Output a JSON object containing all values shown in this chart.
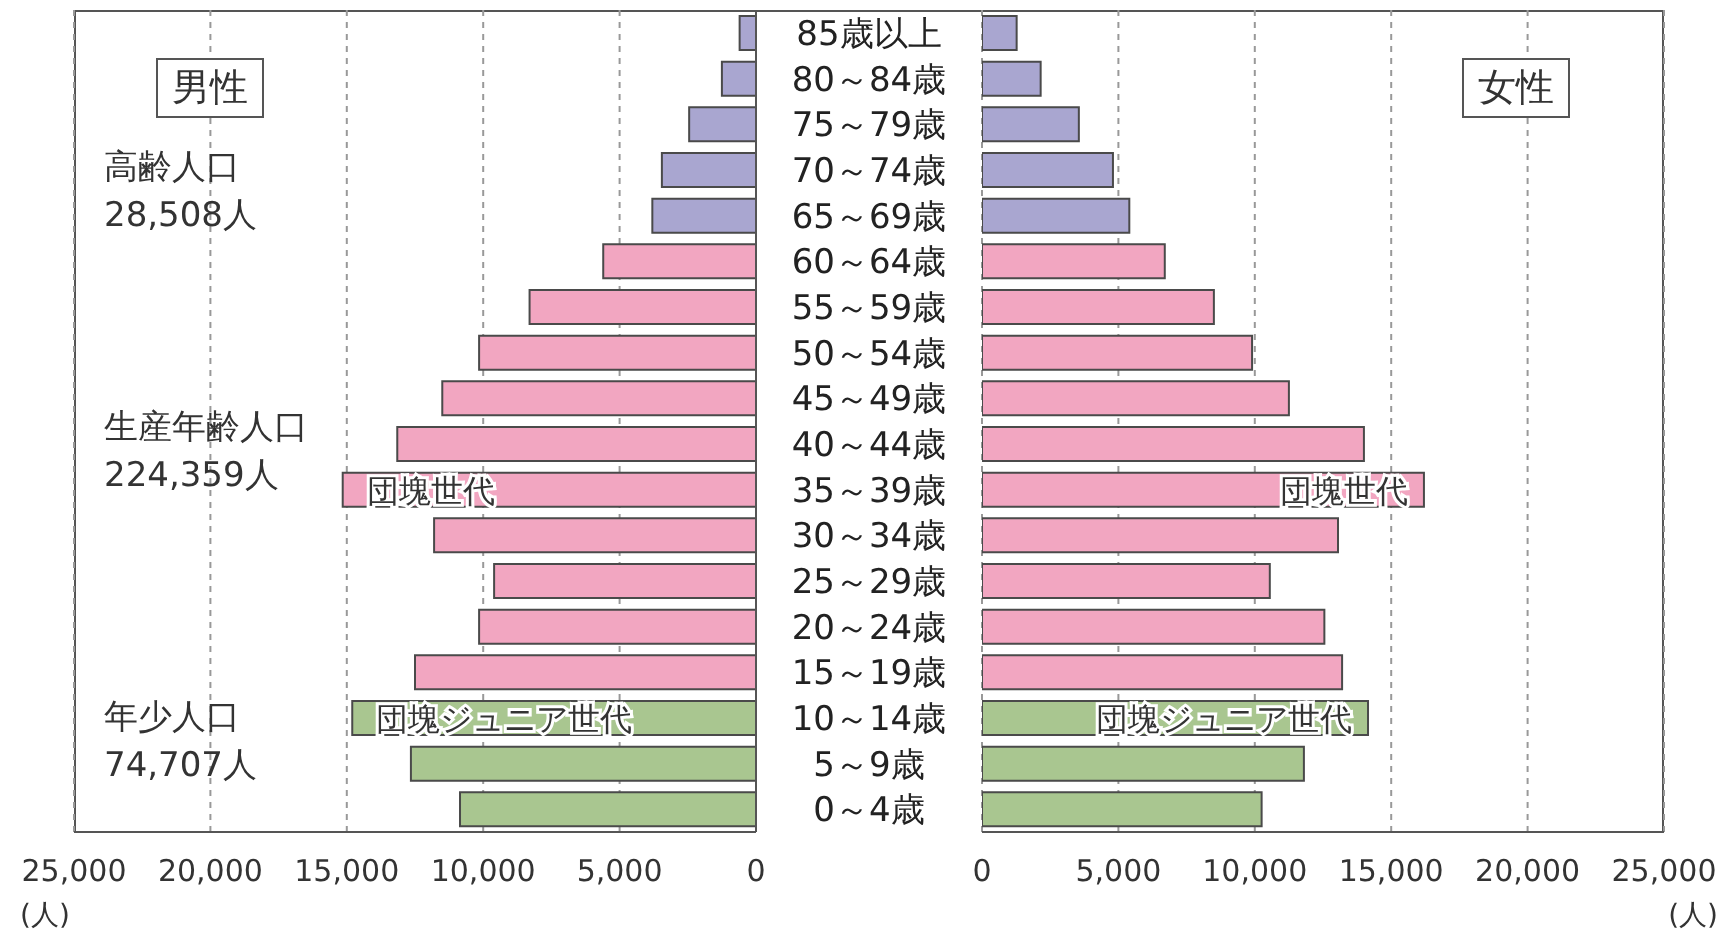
{
  "chart_data": [
    {
      "type": "bar",
      "orientation": "horizontal",
      "grid": "x",
      "xlabel": "(人)",
      "categories": [
        "85歳以上",
        "80～84歳",
        "75～79歳",
        "70～74歳",
        "65～69歳",
        "60～64歳",
        "55～59歳",
        "50～54歳",
        "45～49歳",
        "40～44歳",
        "35～39歳",
        "30～34歳",
        "25～29歳",
        "20～24歳",
        "15～19歳",
        "10～14歳",
        "5～9歳",
        "0～4歳"
      ],
      "values": [
        600,
        1250,
        2450,
        3450,
        3800,
        5600,
        8300,
        10150,
        11500,
        13150,
        15150,
        11800,
        9600,
        10150,
        12500,
        14800,
        12650,
        10850
      ],
      "colors": [
        "#a9a6d0",
        "#a9a6d0",
        "#a9a6d0",
        "#a9a6d0",
        "#a9a6d0",
        "#f2a6c1",
        "#f2a6c1",
        "#f2a6c1",
        "#f2a6c1",
        "#f2a6c1",
        "#f2a6c1",
        "#f2a6c1",
        "#f2a6c1",
        "#f2a6c1",
        "#f2a6c1",
        "#a9c690",
        "#a9c690",
        "#a9c690"
      ],
      "xlim": [
        25000,
        0
      ],
      "xticks": [
        {
          "value": 25000,
          "label": "25,000"
        },
        {
          "value": 20000,
          "label": "20,000"
        },
        {
          "value": 15000,
          "label": "15,000"
        },
        {
          "value": 10000,
          "label": "10,000"
        },
        {
          "value": 5000,
          "label": "5,000"
        },
        0
      ],
      "annotations": [
        "男性",
        "高齢人口\n28,508人",
        "生産年齢人口\n224,359人",
        "年少人口\n74,707人",
        {
          "text": "団塊世代",
          "x": 15150,
          "y": "35～39歳"
        },
        {
          "text": "団塊ジュニア世代",
          "x": 14800,
          "y": "10～14歳"
        }
      ]
    },
    {
      "type": "bar",
      "orientation": "horizontal",
      "grid": "x",
      "xlabel": "(人)",
      "tick_labels": "x",
      "categories": [
        "85歳以上",
        "80～84歳",
        "75～79歳",
        "70～74歳",
        "65～69歳",
        "60～64歳",
        "55～59歳",
        "50～54歳",
        "45～49歳",
        "40～44歳",
        "35～39歳",
        "30～34歳",
        "25～29歳",
        "20～24歳",
        "15～19歳",
        "10～14歳",
        "5～9歳",
        "0～4歳"
      ],
      "values": [
        1270,
        2150,
        3550,
        4800,
        5400,
        6700,
        8500,
        9900,
        11250,
        14000,
        16200,
        13050,
        10550,
        12550,
        13200,
        14150,
        11800,
        10250
      ],
      "colors": [
        "#a9a6d0",
        "#a9a6d0",
        "#a9a6d0",
        "#a9a6d0",
        "#a9a6d0",
        "#f2a6c1",
        "#f2a6c1",
        "#f2a6c1",
        "#f2a6c1",
        "#f2a6c1",
        "#f2a6c1",
        "#f2a6c1",
        "#f2a6c1",
        "#f2a6c1",
        "#f2a6c1",
        "#a9c690",
        "#a9c690",
        "#a9c690"
      ],
      "xlim": [
        0,
        25000
      ],
      "xticks": [
        0,
        {
          "value": 5000,
          "label": "5,000"
        },
        {
          "value": 10000,
          "label": "10,000"
        },
        {
          "value": 15000,
          "label": "15,000"
        },
        {
          "value": 20000,
          "label": "20,000"
        },
        {
          "value": 25000,
          "label": "25,000"
        }
      ],
      "annotations": [
        "女性",
        {
          "text": "団塊世代",
          "x": 16200,
          "y": "35～39歳"
        },
        {
          "text": "団塊ジュニア世代",
          "x": 14150,
          "y": "10～14歳"
        }
      ]
    }
  ]
}
